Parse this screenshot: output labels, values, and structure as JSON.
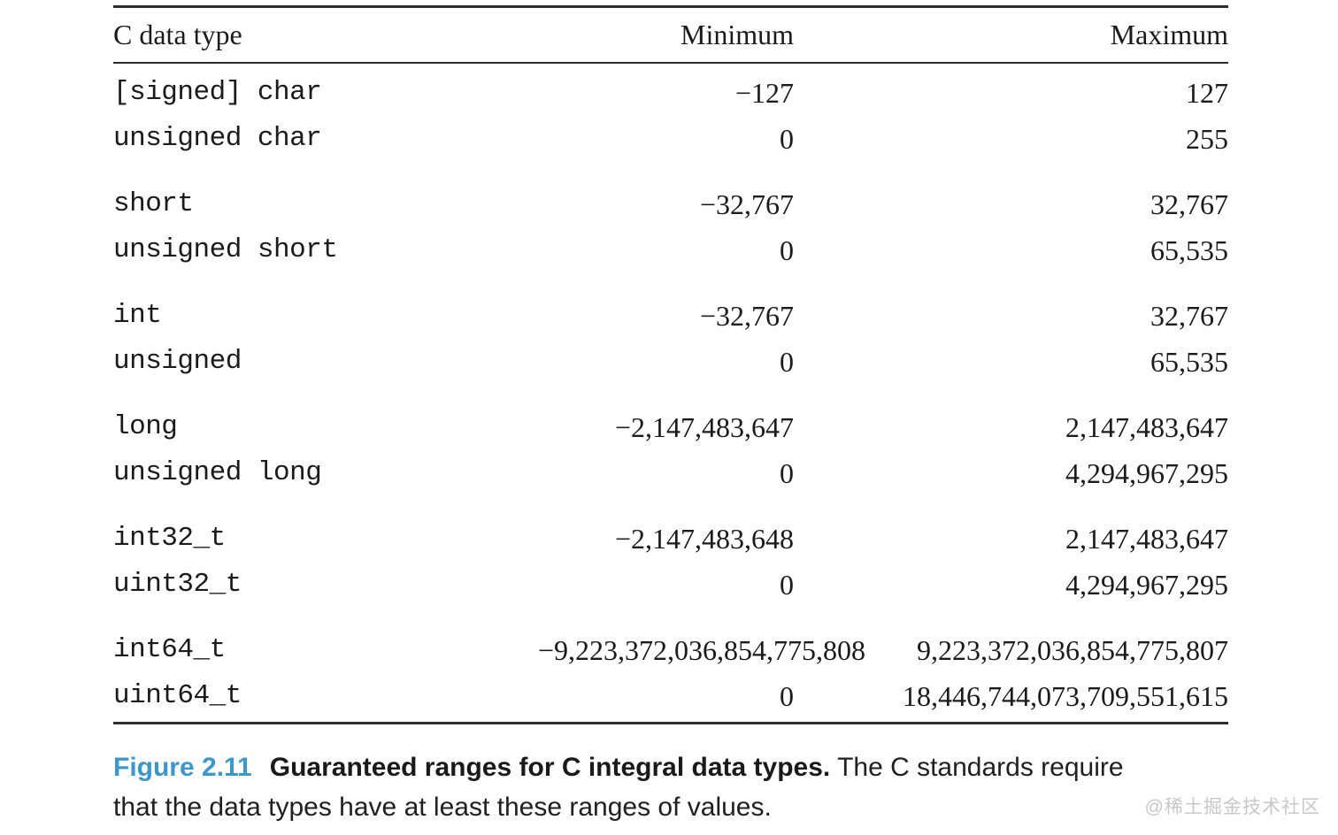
{
  "table": {
    "headers": {
      "type": "C data type",
      "min": "Minimum",
      "max": "Maximum"
    },
    "groups": [
      {
        "rows": [
          {
            "type": "[signed] char",
            "min": "−127",
            "max": "127"
          },
          {
            "type": "unsigned char",
            "min": "0",
            "max": "255"
          }
        ]
      },
      {
        "rows": [
          {
            "type": "short",
            "min": "−32,767",
            "max": "32,767"
          },
          {
            "type": "unsigned short",
            "min": "0",
            "max": "65,535"
          }
        ]
      },
      {
        "rows": [
          {
            "type": "int",
            "min": "−32,767",
            "max": "32,767"
          },
          {
            "type": "unsigned",
            "min": "0",
            "max": "65,535"
          }
        ]
      },
      {
        "rows": [
          {
            "type": "long",
            "min": "−2,147,483,647",
            "max": "2,147,483,647"
          },
          {
            "type": "unsigned long",
            "min": "0",
            "max": "4,294,967,295"
          }
        ]
      },
      {
        "rows": [
          {
            "type": "int32_t",
            "min": "−2,147,483,648",
            "max": "2,147,483,647"
          },
          {
            "type": "uint32_t",
            "min": "0",
            "max": "4,294,967,295"
          }
        ]
      },
      {
        "rows": [
          {
            "type": "int64_t",
            "min": "−9,223,372,036,854,775,808",
            "max": "9,223,372,036,854,775,807"
          },
          {
            "type": "uint64_t",
            "min": "0",
            "max": "18,446,744,073,709,551,615"
          }
        ]
      }
    ]
  },
  "caption": {
    "figure_label": "Figure 2.11",
    "title_bold": "Guaranteed ranges for C integral data types.",
    "body_line1": "The C standards require",
    "body_line2": "that the data types have at least these ranges of values."
  },
  "watermark": "@稀土掘金技术社区",
  "colors": {
    "figure_label_blue": "#3d97cb",
    "watermark_gray": "#c8c8c8"
  }
}
